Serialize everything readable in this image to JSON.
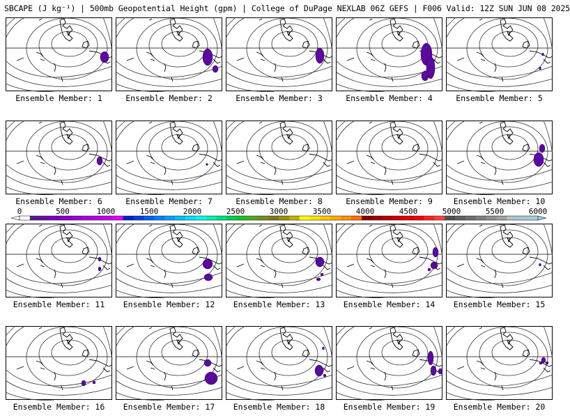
{
  "title": "SBCAPE (J kg⁻¹) | 500mb Geopotential Height (gpm) | College of DuPage NEXLAB 06Z GEFS | F006 Valid: 12Z SUN JUN 08 2025",
  "colors": {
    "cape_fill": "#5a0a9c",
    "colorbar": [
      "#ffffff",
      "#5a1a8a",
      "#6a0aa8",
      "#7c00c0",
      "#8a00c8",
      "#9a00d8",
      "#aa00e0",
      "#bc00e8",
      "#cc00f0",
      "#e000f4",
      "#0020d0",
      "#0040e0",
      "#0060f0",
      "#0080ff",
      "#00a0ff",
      "#00c0ff",
      "#00e0ff",
      "#00ffe8",
      "#00f0b0",
      "#00e080",
      "#00d050",
      "#20c020",
      "#50a820",
      "#709020",
      "#807820",
      "#a09000",
      "#c8b000",
      "#ffff00",
      "#ffe400",
      "#ffc800",
      "#ffac00",
      "#ff9000",
      "#ff7000",
      "#800000",
      "#a00000",
      "#b80000",
      "#d00000",
      "#e80000",
      "#ff0000",
      "#ff2020",
      "#ff4040",
      "#505050",
      "#606060",
      "#707070",
      "#808080",
      "#909090",
      "#a0a0a0",
      "#b0c4cc",
      "#a8c8d8",
      "#a0d0e0"
    ]
  },
  "colorbar_labels": [
    "0",
    "500",
    "1000",
    "1500",
    "2000",
    "2500",
    "3000",
    "3500",
    "4000",
    "4500",
    "5000",
    "5500",
    "6000"
  ],
  "members": [
    {
      "label": "Ensemble Member: 1"
    },
    {
      "label": "Ensemble Member: 2"
    },
    {
      "label": "Ensemble Member: 3"
    },
    {
      "label": "Ensemble Member: 4"
    },
    {
      "label": "Ensemble Member: 5"
    },
    {
      "label": "Ensemble Member: 6"
    },
    {
      "label": "Ensemble Member: 7"
    },
    {
      "label": "Ensemble Member: 8"
    },
    {
      "label": "Ensemble Member: 9"
    },
    {
      "label": "Ensemble Member: 10"
    },
    {
      "label": "Ensemble Member: 11"
    },
    {
      "label": "Ensemble Member: 12"
    },
    {
      "label": "Ensemble Member: 13"
    },
    {
      "label": "Ensemble Member: 14"
    },
    {
      "label": "Ensemble Member: 15"
    },
    {
      "label": "Ensemble Member: 16"
    },
    {
      "label": "Ensemble Member: 17"
    },
    {
      "label": "Ensemble Member: 18"
    },
    {
      "label": "Ensemble Member: 19"
    },
    {
      "label": "Ensemble Member: 20"
    }
  ]
}
